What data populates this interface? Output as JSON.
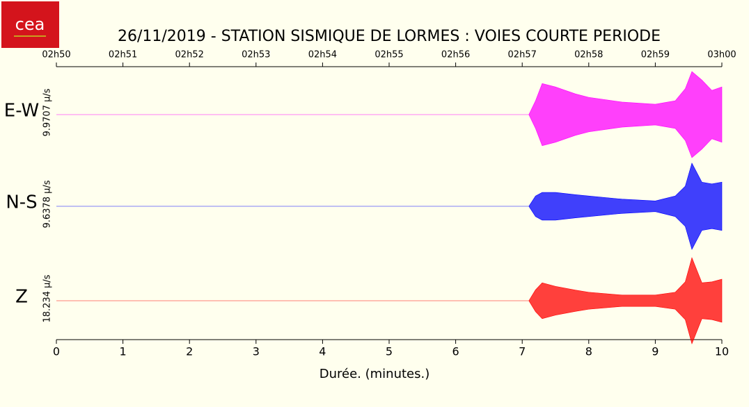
{
  "logo": {
    "text": "cea"
  },
  "chart_data": {
    "type": "seismogram",
    "title": "26/11/2019  -  STATION SISMIQUE DE LORMES : VOIES COURTE PERIODE",
    "xlabel": "Durée.  (minutes.)",
    "xlim": [
      0,
      10
    ],
    "xticks": [
      0,
      1,
      2,
      3,
      4,
      5,
      6,
      7,
      8,
      9,
      10
    ],
    "x2ticks": [
      {
        "value": 0,
        "label": "02h50"
      },
      {
        "value": 1,
        "label": "02h51"
      },
      {
        "value": 2,
        "label": "02h52"
      },
      {
        "value": 3,
        "label": "02h53"
      },
      {
        "value": 4,
        "label": "02h54"
      },
      {
        "value": 5,
        "label": "02h55"
      },
      {
        "value": 6,
        "label": "02h56"
      },
      {
        "value": 7,
        "label": "02h57"
      },
      {
        "value": 8,
        "label": "02h58"
      },
      {
        "value": 9,
        "label": "02h59"
      },
      {
        "value": 10,
        "label": "03h00"
      }
    ],
    "x": [
      0,
      7.1,
      7.2,
      7.3,
      7.5,
      7.8,
      8.0,
      8.5,
      9.0,
      9.3,
      9.45,
      9.55,
      9.7,
      9.85,
      10
    ],
    "series": [
      {
        "name": "E-W",
        "color": "#ff00ff",
        "scale": {
          "value": 9.9707,
          "label": "9.9707 µ/s"
        },
        "values": [
          0,
          0,
          3.2,
          7.2,
          6.4,
          4.8,
          4.0,
          2.9,
          2.4,
          3.2,
          6.0,
          9.97,
          8.0,
          5.6,
          6.4
        ]
      },
      {
        "name": "N-S",
        "color": "#0000ff",
        "scale": {
          "value": 9.6378,
          "label": "9.6378 µ/s"
        },
        "values": [
          0,
          0,
          2.3,
          3.1,
          3.1,
          2.6,
          2.3,
          1.6,
          1.2,
          2.3,
          4.5,
          9.64,
          5.4,
          5.0,
          5.4
        ]
      },
      {
        "name": "Z",
        "color": "#ff0000",
        "scale": {
          "value": 18.234,
          "label": "18.234 µ/s"
        },
        "values": [
          0,
          0,
          4.6,
          7.6,
          6.1,
          4.5,
          3.6,
          2.4,
          2.4,
          3.6,
          8.0,
          18.2,
          7.6,
          8.0,
          9.1
        ]
      }
    ]
  }
}
